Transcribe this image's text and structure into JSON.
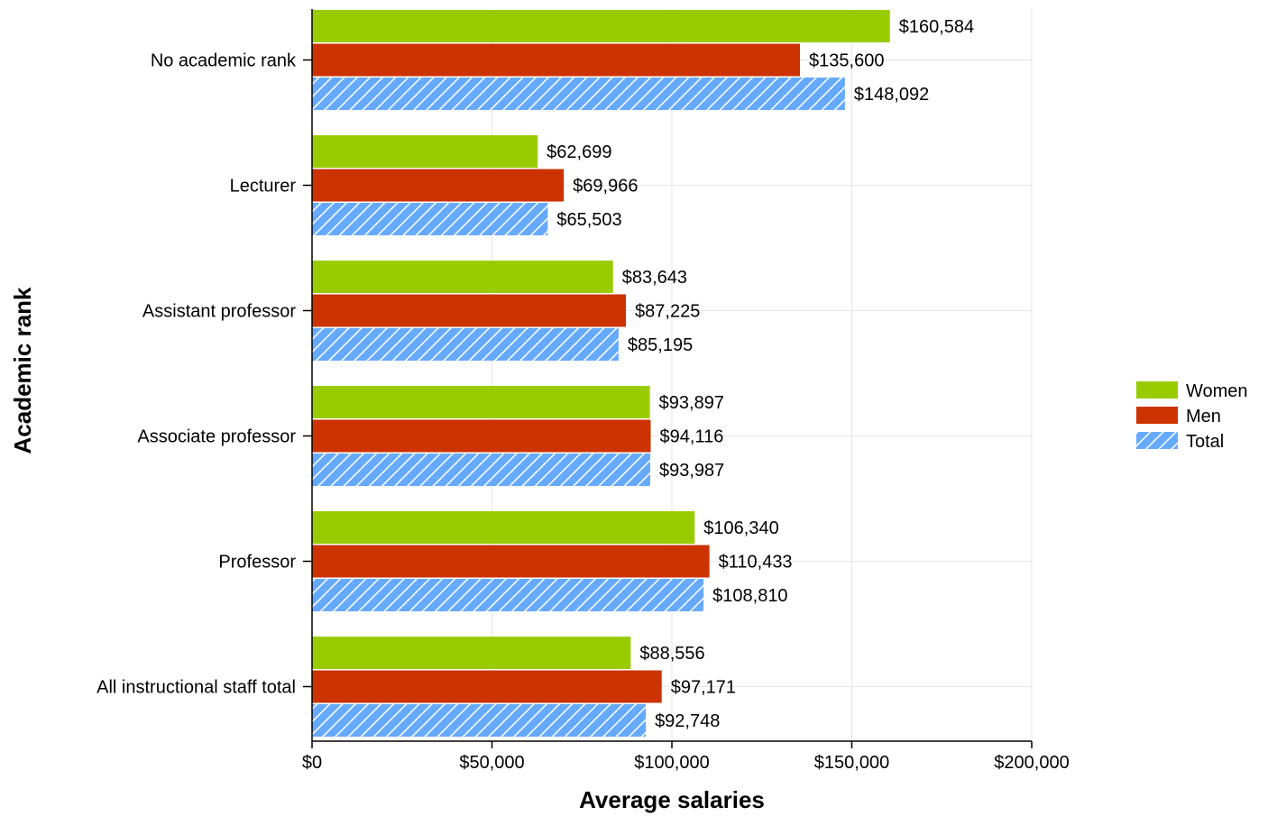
{
  "chart_data": {
    "type": "bar",
    "orientation": "horizontal",
    "xlabel": "Average salaries",
    "ylabel": "Academic rank",
    "xlim": [
      0,
      200000
    ],
    "x_ticks": [
      0,
      50000,
      100000,
      150000,
      200000
    ],
    "x_tick_labels": [
      "$0",
      "$50,000",
      "$100,000",
      "$150,000",
      "$200,000"
    ],
    "grid": true,
    "legend_position": "right",
    "categories": [
      "No academic rank",
      "Lecturer",
      "Assistant professor",
      "Associate professor",
      "Professor",
      "All instructional staff total"
    ],
    "series": [
      {
        "name": "Women",
        "color": "#99cc00",
        "pattern": "solid",
        "values": [
          160584,
          62699,
          83643,
          93897,
          106340,
          88556
        ],
        "labels": [
          "$160,584",
          "$62,699",
          "$83,643",
          "$93,897",
          "$106,340",
          "$88,556"
        ]
      },
      {
        "name": "Men",
        "color": "#cc3300",
        "pattern": "solid",
        "values": [
          135600,
          69966,
          87225,
          94116,
          110433,
          97171
        ],
        "labels": [
          "$135,600",
          "$69,966",
          "$87,225",
          "$94,116",
          "$110,433",
          "$97,171"
        ]
      },
      {
        "name": "Total",
        "color": "#66aaff",
        "pattern": "diagonal-hatch",
        "values": [
          148092,
          65503,
          85195,
          93987,
          108810,
          92748
        ],
        "labels": [
          "$148,092",
          "$65,503",
          "$85,195",
          "$93,987",
          "$108,810",
          "$92,748"
        ]
      }
    ]
  }
}
